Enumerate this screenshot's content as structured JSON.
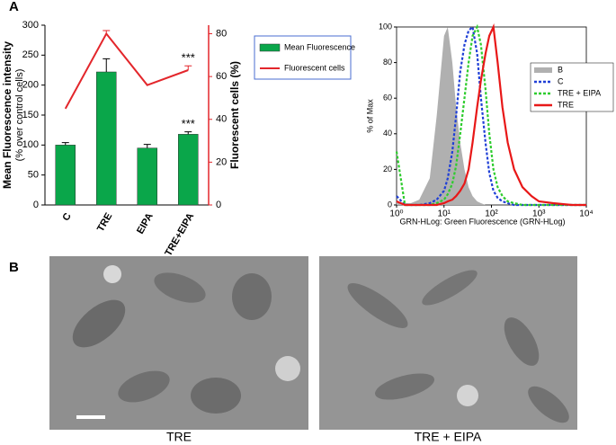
{
  "panel_labels": [
    "A",
    "B"
  ],
  "image_captions": [
    "TRE",
    "TRE + EIPA"
  ],
  "chart_data": [
    {
      "type": "combo",
      "ylabel": "Mean Fluorescence intensity",
      "ylabel_note": "(% over control cells)",
      "y2label": "Fluorescent cells (%)",
      "categories": [
        "C",
        "TRE",
        "EIPA",
        "TRE+EIPA"
      ],
      "ylim": [
        0,
        300
      ],
      "yticks": [
        0,
        50,
        100,
        150,
        200,
        250,
        300
      ],
      "y2lim": [
        0,
        84
      ],
      "y2ticks": [
        0,
        20,
        40,
        60,
        80
      ],
      "series": [
        {
          "name": "Mean Fluorescence",
          "kind": "bar",
          "color": "#0aa64a",
          "values": [
            100,
            222,
            95,
            118
          ],
          "errors": [
            4,
            22,
            6,
            4
          ]
        },
        {
          "name": "Fluorescent cells",
          "kind": "line",
          "axis": "y2",
          "color": "#e3262b",
          "values": [
            45,
            80,
            56,
            63
          ],
          "errors": [
            null,
            1.5,
            null,
            2
          ]
        }
      ],
      "annotations": [
        "***",
        "***"
      ]
    },
    {
      "type": "histogram-overlay",
      "ylabel": "% of Max",
      "xlabel": "GRN-HLog: Green Fluorescence (GRN-HLog)",
      "xscale": "log",
      "xlim": [
        1,
        10000
      ],
      "xticks": [
        {
          "value": 1,
          "label": "10⁰"
        },
        {
          "value": 10,
          "label": "10¹"
        },
        {
          "value": 100,
          "label": "10²"
        },
        {
          "value": 1000,
          "label": "10³"
        },
        {
          "value": 10000,
          "label": "10⁴"
        }
      ],
      "ylim": [
        0,
        100
      ],
      "yticks": [
        0,
        20,
        40,
        60,
        80,
        100
      ],
      "x": [
        1,
        1.5,
        2,
        3,
        5,
        7,
        10,
        12,
        15,
        18,
        22,
        27,
        33,
        40,
        50,
        60,
        75,
        90,
        110,
        135,
        170,
        220,
        300,
        450,
        700,
        1000,
        2000,
        5000,
        10000
      ],
      "series": [
        {
          "name": "B",
          "style": "fill",
          "color": "#b0b0b0",
          "values": [
            2,
            1,
            1,
            3,
            15,
            50,
            95,
            100,
            80,
            55,
            35,
            20,
            10,
            5,
            2,
            1,
            0,
            0,
            0,
            0,
            0,
            0,
            0,
            0,
            0,
            0,
            0,
            0,
            0
          ]
        },
        {
          "name": "C",
          "style": "dotted",
          "color": "#1f3fd6",
          "values": [
            5,
            0,
            0,
            0,
            1,
            3,
            8,
            15,
            30,
            50,
            75,
            90,
            98,
            100,
            85,
            60,
            35,
            18,
            8,
            4,
            2,
            1,
            0,
            0,
            0,
            0,
            0,
            0,
            0
          ]
        },
        {
          "name": "TRE + EIPA",
          "style": "dotted",
          "color": "#2ecc2e",
          "values": [
            30,
            0,
            0,
            0,
            0,
            1,
            3,
            6,
            12,
            22,
            40,
            60,
            80,
            95,
            100,
            90,
            65,
            40,
            20,
            10,
            5,
            2,
            1,
            0,
            0,
            0,
            0,
            0,
            0
          ]
        },
        {
          "name": "TRE",
          "style": "solid",
          "color": "#e81818",
          "values": [
            2,
            0,
            0,
            0,
            0,
            0,
            1,
            2,
            3,
            5,
            8,
            12,
            20,
            35,
            55,
            70,
            85,
            95,
            100,
            80,
            55,
            35,
            20,
            10,
            5,
            2,
            1,
            0,
            0
          ]
        }
      ]
    }
  ]
}
